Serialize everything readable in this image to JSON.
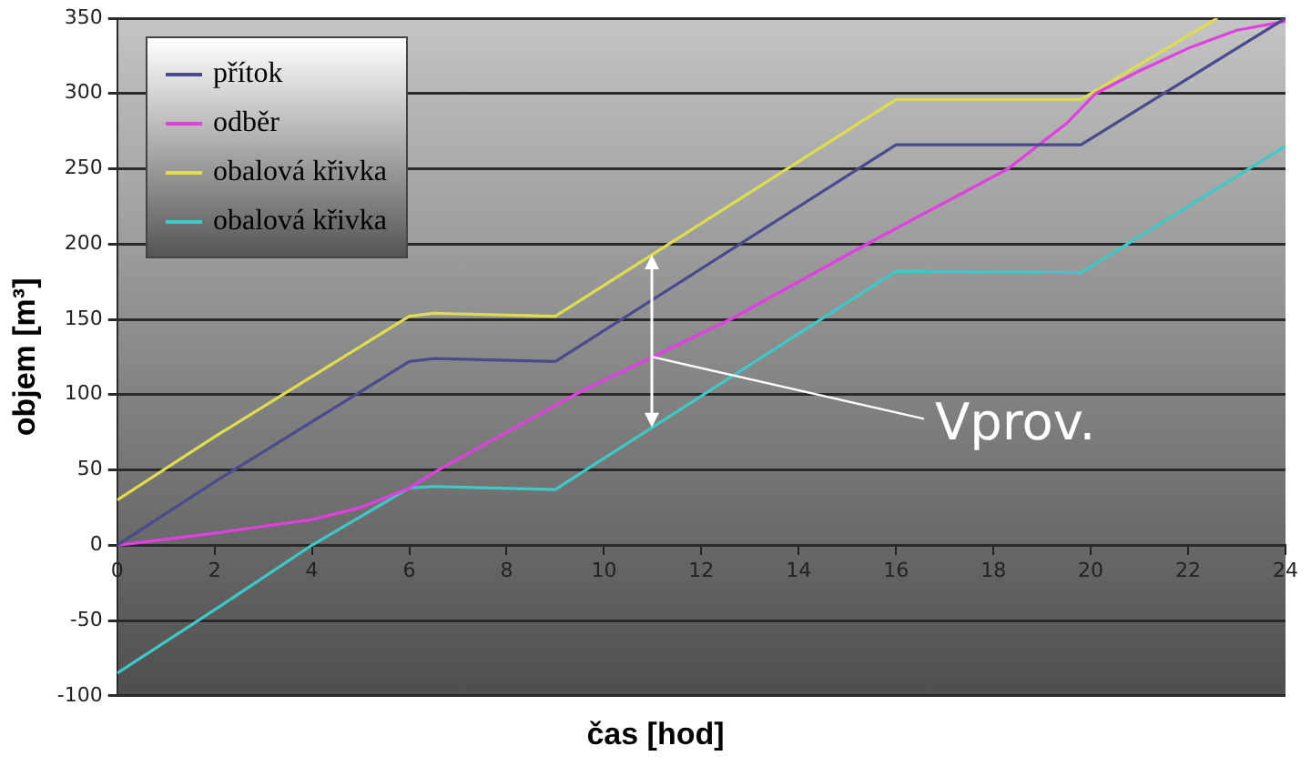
{
  "chart_data": {
    "type": "line",
    "xlabel": "čas [hod]",
    "ylabel": "objem [m³]",
    "xlim": [
      0,
      24
    ],
    "xticks": [
      0,
      2,
      4,
      6,
      8,
      10,
      12,
      14,
      16,
      18,
      20,
      22,
      24
    ],
    "ylim": [
      -100,
      350
    ],
    "yticks": [
      -100,
      -50,
      0,
      50,
      100,
      150,
      200,
      250,
      300,
      350
    ],
    "grid": "y",
    "legend": "top left",
    "marker": "none",
    "line_style": "solid",
    "series": [
      {
        "name": "přítok",
        "color": "#4a4a8c",
        "x": [
          0,
          2,
          4,
          6,
          6.5,
          9,
          16,
          19.8,
          24
        ],
        "values": [
          0,
          42,
          82,
          122,
          124,
          122,
          266,
          266,
          350
        ]
      },
      {
        "name": "odběr",
        "color": "#e040e0",
        "x": [
          0,
          2,
          4,
          5,
          6,
          6.6,
          9.4,
          12.6,
          15.4,
          18.3,
          19.5,
          20.1,
          21,
          22,
          23,
          24
        ],
        "values": [
          0,
          8,
          17,
          25,
          38,
          50,
          100,
          150,
          200,
          250,
          280,
          300,
          315,
          330,
          342,
          348
        ]
      },
      {
        "name": "obalová křivka",
        "color": "#e0dc50",
        "x": [
          0,
          2,
          4,
          6,
          6.5,
          9,
          16,
          19.8,
          22.6
        ],
        "values": [
          30,
          72,
          112,
          152,
          154,
          152,
          296,
          296,
          350
        ]
      },
      {
        "name": "obalová křivka",
        "color": "#40c8c8",
        "x": [
          0,
          2,
          4,
          6,
          6.5,
          9,
          16,
          19.8,
          24
        ],
        "values": [
          -85,
          -43,
          0,
          38,
          39,
          37,
          182,
          181,
          265
        ]
      }
    ],
    "annotations": [
      {
        "text": "Vprov.",
        "x": 11,
        "y": 125
      }
    ]
  }
}
